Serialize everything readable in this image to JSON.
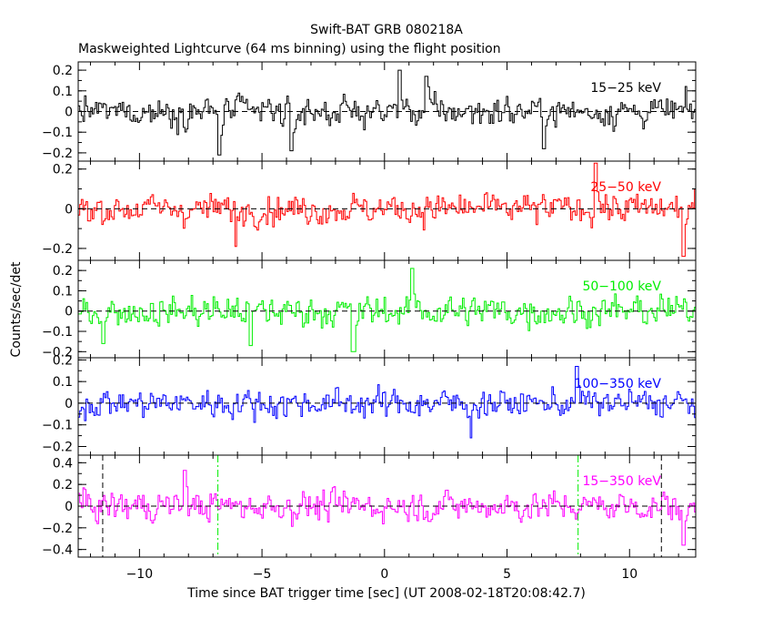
{
  "title": "Swift-BAT GRB 080218A",
  "subtitle": "Maskweighted Lightcurve (64 ms binning) using the flight position",
  "xlabel": "Time since BAT trigger time [sec] (UT 2008-02-18T20:08:42.7)",
  "ylabel": "Counts/sec/det",
  "colors": {
    "black": "#000000",
    "red": "#ff0000",
    "green": "#00ee00",
    "blue": "#0000ff",
    "magenta": "#ff00ff"
  },
  "chart_data": {
    "type": "line",
    "binning_sec": 0.064,
    "xlim": [
      -12.5,
      12.7
    ],
    "x_ticks": [
      -10,
      -5,
      0,
      5,
      10
    ],
    "x_tick_labels": [
      "−10",
      "−5",
      "0",
      "5",
      "10"
    ],
    "vertical_markers": [
      {
        "x": -11.5,
        "style": "dashed",
        "color": "#000000"
      },
      {
        "x": -6.8,
        "style": "dash-dot",
        "color": "#00ee00"
      },
      {
        "x": 7.9,
        "style": "dash-dot",
        "color": "#00ee00"
      },
      {
        "x": 11.3,
        "style": "dashed",
        "color": "#000000"
      }
    ],
    "panels": [
      {
        "band": "15−25 keV",
        "color": "#000000",
        "ylim": [
          -0.24,
          0.24
        ],
        "y_ticks": [
          -0.2,
          -0.1,
          0,
          0.1,
          0.2
        ],
        "y_tick_labels": [
          "−0.2",
          "−0.1",
          "0",
          "0.1",
          "0.2"
        ],
        "noise_sigma": 0.055,
        "peaks": [
          {
            "x": -6.8,
            "y": -0.21
          },
          {
            "x": -3.8,
            "y": -0.19
          },
          {
            "x": 0.6,
            "y": 0.2
          },
          {
            "x": 1.7,
            "y": 0.17
          },
          {
            "x": 6.5,
            "y": -0.18
          }
        ]
      },
      {
        "band": "25−50 keV",
        "color": "#ff0000",
        "ylim": [
          -0.26,
          0.24
        ],
        "y_ticks": [
          -0.2,
          0,
          0.2
        ],
        "y_tick_labels": [
          "−0.2",
          "0",
          "0.2"
        ],
        "noise_sigma": 0.06,
        "peaks": [
          {
            "x": 8.6,
            "y": 0.23
          },
          {
            "x": 12.2,
            "y": -0.24
          },
          {
            "x": -6.1,
            "y": -0.19
          }
        ]
      },
      {
        "band": "50−100 keV",
        "color": "#00ee00",
        "ylim": [
          -0.23,
          0.25
        ],
        "y_ticks": [
          -0.2,
          -0.1,
          0,
          0.1,
          0.2
        ],
        "y_tick_labels": [
          "−0.2",
          "−0.1",
          "0",
          "0.1",
          "0.2"
        ],
        "noise_sigma": 0.06,
        "peaks": [
          {
            "x": -11.5,
            "y": -0.16
          },
          {
            "x": -5.5,
            "y": -0.17
          },
          {
            "x": 1.1,
            "y": 0.21
          },
          {
            "x": -1.3,
            "y": -0.2
          }
        ]
      },
      {
        "band": "100−350 keV",
        "color": "#0000ff",
        "ylim": [
          -0.24,
          0.21
        ],
        "y_ticks": [
          -0.2,
          -0.1,
          0,
          0.1,
          0.2
        ],
        "y_tick_labels": [
          "−0.2",
          "−0.1",
          "0",
          "0.1",
          "0.2"
        ],
        "noise_sigma": 0.052,
        "peaks": [
          {
            "x": 7.8,
            "y": 0.17
          },
          {
            "x": 3.5,
            "y": -0.16
          }
        ]
      },
      {
        "band": "15−350 keV",
        "color": "#ff00ff",
        "ylim": [
          -0.47,
          0.47
        ],
        "y_ticks": [
          -0.4,
          -0.2,
          0,
          0.2,
          0.4
        ],
        "y_tick_labels": [
          "−0.4",
          "−0.2",
          "0",
          "0.2",
          "0.4"
        ],
        "noise_sigma": 0.11,
        "peaks": [
          {
            "x": 12.2,
            "y": -0.36
          },
          {
            "x": -8.2,
            "y": 0.33
          }
        ]
      }
    ]
  }
}
